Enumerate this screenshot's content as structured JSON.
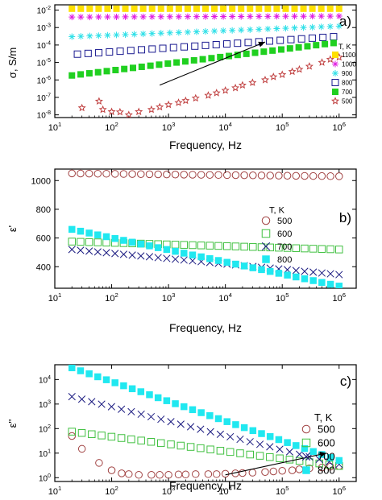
{
  "chart_data": [
    {
      "id": "a",
      "type": "scatter",
      "panel_label": "a)",
      "xlabel": "Frequency, Hz",
      "ylabel": "σ, S/m",
      "xscale": "log",
      "yscale": "log",
      "xlim": [
        10,
        2000000
      ],
      "ylim": [
        7e-09,
        0.02
      ],
      "xticks": [
        10,
        100,
        1000,
        10000,
        100000,
        1000000
      ],
      "xtick_labels": [
        "10",
        "10",
        "10",
        "10",
        "10",
        "10"
      ],
      "xtick_exps": [
        "1",
        "2",
        "3",
        "4",
        "5",
        "6"
      ],
      "yticks": [
        1e-08,
        1e-07,
        1e-06,
        1e-05,
        0.0001,
        0.001,
        0.01
      ],
      "ytick_labels": [
        "10",
        "10",
        "10",
        "10",
        "10",
        "10",
        "10"
      ],
      "ytick_exps": [
        "-8",
        "-7",
        "-6",
        "-5",
        "-4",
        "-3",
        "-2"
      ],
      "legend_title": "T, K",
      "legend_position": "right",
      "arrow": {
        "from": [
          700,
          5e-07
        ],
        "to": [
          50000,
          0.00015
        ]
      },
      "series": [
        {
          "name": "1100",
          "marker": "square-filled",
          "color": "#ffe000",
          "x_range": [
            20,
            1000000
          ],
          "n": 31,
          "y_start": 0.012,
          "y_end": 0.012
        },
        {
          "name": "1000",
          "marker": "asterisk",
          "color": "#e020e0",
          "x_range": [
            20,
            1000000
          ],
          "n": 31,
          "y_start": 0.004,
          "y_end": 0.0045
        },
        {
          "name": "900",
          "marker": "asterisk",
          "color": "#30e0e8",
          "x_range": [
            20,
            1000000
          ],
          "n": 31,
          "y_start": 0.0003,
          "y_end": 0.0012
        },
        {
          "name": "800",
          "marker": "square-open",
          "color": "#1a1a90",
          "x_range": [
            25,
            800000
          ],
          "n": 25,
          "y_start": 3e-05,
          "y_end": 0.0003
        },
        {
          "name": "700",
          "marker": "square-filled",
          "color": "#20d020",
          "x_range": [
            20,
            800000
          ],
          "n": 31,
          "y_start": 1.8e-06,
          "y_end": 0.00013
        },
        {
          "name": "500",
          "marker": "star-open",
          "color": "#c04040",
          "points": [
            [
              30,
              2.5e-08
            ],
            [
              70,
              2e-08
            ],
            [
              100,
              1.5e-08
            ],
            [
              140,
              1.45e-08
            ],
            [
              200,
              1e-08
            ],
            [
              300,
              1.5e-08
            ],
            [
              500,
              2e-08
            ],
            [
              700,
              2.8e-08
            ],
            [
              1000,
              3.8e-08
            ],
            [
              1500,
              5e-08
            ],
            [
              2000,
              6.5e-08
            ],
            [
              3000,
              9e-08
            ],
            [
              5000,
              1.3e-07
            ],
            [
              7000,
              1.8e-07
            ],
            [
              10000,
              2.5e-07
            ],
            [
              15000,
              3.5e-07
            ],
            [
              20000,
              5e-07
            ],
            [
              30000,
              7e-07
            ],
            [
              50000,
              1e-06
            ],
            [
              70000,
              1.5e-06
            ],
            [
              100000,
              2e-06
            ],
            [
              150000,
              3e-06
            ],
            [
              200000,
              4e-06
            ],
            [
              300000,
              6e-06
            ],
            [
              500000,
              1e-05
            ],
            [
              700000,
              1.5e-05
            ],
            [
              1000000,
              2e-05
            ],
            [
              60,
              6e-08
            ]
          ]
        }
      ]
    },
    {
      "id": "b",
      "type": "scatter",
      "panel_label": "b)",
      "xlabel": "Frequency, Hz",
      "ylabel": "ε'",
      "xscale": "log",
      "yscale": "linear",
      "xlim": [
        10,
        2000000
      ],
      "ylim": [
        250,
        1080
      ],
      "xticks": [
        10,
        100,
        1000,
        10000,
        100000,
        1000000
      ],
      "xtick_labels": [
        "10",
        "10",
        "10",
        "10",
        "10",
        "10"
      ],
      "xtick_exps": [
        "1",
        "2",
        "3",
        "4",
        "5",
        "6"
      ],
      "yticks": [
        400,
        600,
        800,
        1000
      ],
      "ytick_labels": [
        "400",
        "600",
        "800",
        "1000"
      ],
      "ytick_exps": [
        "",
        "",
        "",
        ""
      ],
      "legend_title": "T, K",
      "legend_position": "right",
      "series": [
        {
          "name": "500",
          "marker": "circle-open",
          "color": "#a04040",
          "x_range": [
            20,
            1000000
          ],
          "n": 32,
          "y_start": 1050,
          "y_end": 1030
        },
        {
          "name": "600",
          "marker": "square-open",
          "color": "#40c040",
          "x_range": [
            20,
            1000000
          ],
          "n": 32,
          "y_start": 575,
          "y_end": 520
        },
        {
          "name": "700",
          "marker": "x",
          "color": "#1a1a80",
          "x_range": [
            20,
            1000000
          ],
          "n": 32,
          "y_start": 520,
          "y_end": 345
        },
        {
          "name": "800",
          "marker": "square-filled",
          "color": "#20e8f0",
          "x_range": [
            20,
            1000000
          ],
          "n": 32,
          "y_start": 660,
          "y_end": 265
        }
      ]
    },
    {
      "id": "c",
      "type": "scatter",
      "panel_label": "c)",
      "xlabel": "Frequency, Hz",
      "ylabel": "ε''",
      "xscale": "log",
      "yscale": "log",
      "xlim": [
        10,
        2000000
      ],
      "ylim": [
        0.7,
        40000
      ],
      "xticks": [
        10,
        100,
        1000,
        10000,
        100000,
        1000000
      ],
      "xtick_labels": [
        "10",
        "10",
        "10",
        "10",
        "10",
        "10"
      ],
      "xtick_exps": [
        "1",
        "2",
        "3",
        "4",
        "5",
        "6"
      ],
      "yticks": [
        1,
        10,
        100,
        1000,
        10000
      ],
      "ytick_labels": [
        "10",
        "10",
        "10",
        "10",
        "10"
      ],
      "ytick_exps": [
        "0",
        "1",
        "2",
        "3",
        "4"
      ],
      "legend_title": "T, K",
      "legend_position": "right",
      "arrow": {
        "from": [
          10000,
          1.3
        ],
        "to": [
          600000,
          10
        ]
      },
      "series": [
        {
          "name": "500",
          "marker": "circle-open",
          "color": "#a04040",
          "points": [
            [
              20,
              50
            ],
            [
              30,
              15
            ],
            [
              60,
              4
            ],
            [
              100,
              2
            ],
            [
              150,
              1.5
            ],
            [
              200,
              1.4
            ],
            [
              300,
              1.3
            ],
            [
              500,
              1.3
            ],
            [
              700,
              1.3
            ],
            [
              1000,
              1.3
            ],
            [
              1500,
              1.35
            ],
            [
              2000,
              1.35
            ],
            [
              3000,
              1.4
            ],
            [
              5000,
              1.4
            ],
            [
              7000,
              1.4
            ],
            [
              10000,
              1.45
            ],
            [
              15000,
              1.5
            ],
            [
              20000,
              1.55
            ],
            [
              30000,
              1.6
            ],
            [
              50000,
              1.7
            ],
            [
              70000,
              1.8
            ],
            [
              100000,
              1.9
            ],
            [
              150000,
              2
            ],
            [
              200000,
              2.2
            ],
            [
              300000,
              2.4
            ],
            [
              500000,
              2.6
            ],
            [
              700000,
              2.8
            ],
            [
              1000000,
              3
            ]
          ]
        },
        {
          "name": "600",
          "marker": "square-open",
          "color": "#40c040",
          "x_range": [
            20,
            1000000
          ],
          "n": 28,
          "y_start": 75,
          "y_end": 3
        },
        {
          "name": "700",
          "marker": "x",
          "color": "#1a1a80",
          "x_range": [
            20,
            1000000
          ],
          "n": 28,
          "y_start": 2000,
          "y_end": 3.5
        },
        {
          "name": "800",
          "marker": "square-filled",
          "color": "#20e8f0",
          "x_range": [
            20,
            1000000
          ],
          "n": 32,
          "y_start": 30000,
          "y_end": 5
        }
      ]
    }
  ]
}
